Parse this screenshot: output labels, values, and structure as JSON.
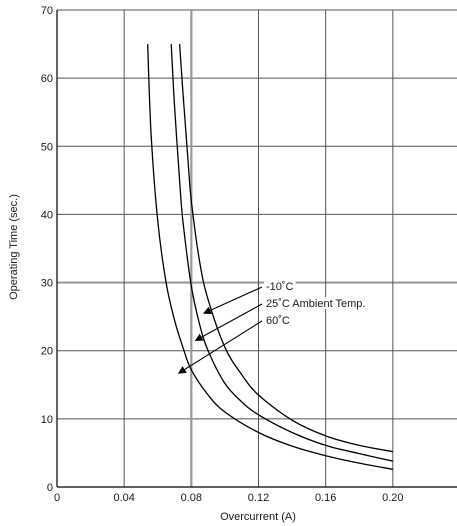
{
  "chart_data": {
    "type": "line",
    "xlabel": "Overcurrent (A)",
    "ylabel": "Operating Time (sec.)",
    "xlim": [
      0,
      0.24
    ],
    "ylim": [
      0,
      70
    ],
    "xticks": [
      0,
      0.04,
      0.08,
      0.12,
      0.16,
      0.2
    ],
    "xtick_labels": [
      "0",
      "0.04",
      "0.08",
      "0.12",
      "0.16",
      "0.20"
    ],
    "yticks": [
      0,
      10,
      20,
      30,
      40,
      50,
      60,
      70
    ],
    "ytick_labels": [
      "0",
      "10",
      "20",
      "30",
      "40",
      "50",
      "60",
      "70"
    ],
    "grid": true,
    "highlighted_gridlines": {
      "x": [
        0.08
      ],
      "y": [
        30
      ]
    },
    "series": [
      {
        "name": "-10°C",
        "x": [
          0.073,
          0.075,
          0.078,
          0.08,
          0.085,
          0.09,
          0.1,
          0.11,
          0.12,
          0.14,
          0.16,
          0.18,
          0.2
        ],
        "y": [
          65,
          58,
          48,
          42,
          33,
          27.5,
          20.5,
          16.5,
          13.5,
          9.8,
          7.5,
          6.1,
          5.2
        ]
      },
      {
        "name": "25°C",
        "x": [
          0.068,
          0.07,
          0.073,
          0.075,
          0.08,
          0.085,
          0.09,
          0.1,
          0.11,
          0.12,
          0.14,
          0.16,
          0.18,
          0.2
        ],
        "y": [
          65,
          56,
          45,
          39,
          29.5,
          23.8,
          20,
          15.2,
          12.5,
          10.6,
          8,
          6.1,
          4.9,
          3.8
        ]
      },
      {
        "name": "60°C",
        "x": [
          0.054,
          0.056,
          0.06,
          0.065,
          0.07,
          0.075,
          0.08,
          0.09,
          0.1,
          0.12,
          0.14,
          0.16,
          0.18,
          0.2
        ],
        "y": [
          65,
          52,
          39,
          30,
          24.5,
          20.5,
          17.2,
          13.5,
          11,
          8,
          6,
          4.6,
          3.5,
          2.6
        ]
      }
    ],
    "annotations": [
      {
        "text": "-10˚C",
        "arrow_to": {
          "x": 0.0875,
          "y": 25.5
        }
      },
      {
        "text": "25˚C Ambient Temp.",
        "arrow_to": {
          "x": 0.0825,
          "y": 21.5
        }
      },
      {
        "text": "60˚C",
        "arrow_to": {
          "x": 0.0725,
          "y": 16.7
        }
      }
    ],
    "colors": {
      "curve": "#000000",
      "grid": "#555555",
      "highlight_grid": "#9a9a9a"
    }
  }
}
